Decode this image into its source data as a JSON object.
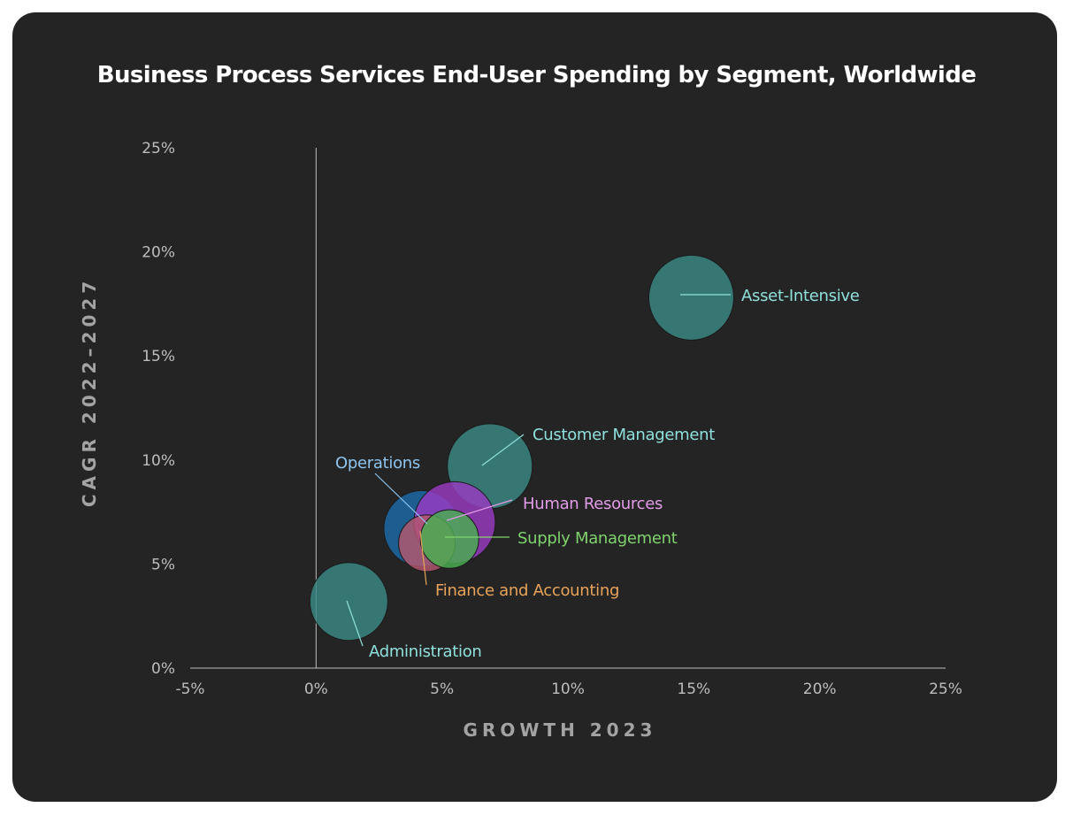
{
  "chart_data": {
    "type": "scatter",
    "title": "Business Process Services End-User Spending by Segment, Worldwide",
    "xlabel": "GROWTH 2023",
    "ylabel": "CAGR 2022–2027",
    "xlim": [
      -5,
      25
    ],
    "ylim": [
      0,
      25
    ],
    "x_ticks": [
      "-5%",
      "0%",
      "5%",
      "10%",
      "15%",
      "20%",
      "25%"
    ],
    "y_ticks": [
      "0%",
      "5%",
      "10%",
      "15%",
      "20%",
      "25%"
    ],
    "series": [
      {
        "name": "Asset-Intensive",
        "x": 14.9,
        "y": 17.8,
        "color": "#3a8a86",
        "label_color": "#8fe0dc"
      },
      {
        "name": "Customer Management",
        "x": 6.9,
        "y": 9.7,
        "color": "#3a8a86",
        "label_color": "#8fe0dc"
      },
      {
        "name": "Operations",
        "x": 4.2,
        "y": 6.7,
        "color": "#1c6aa8",
        "label_color": "#8ec5f0"
      },
      {
        "name": "Human Resources",
        "x": 5.5,
        "y": 7.0,
        "color": "#9a3bc2",
        "label_color": "#e39ce8"
      },
      {
        "name": "Finance and Accounting",
        "x": 4.4,
        "y": 6.0,
        "color": "#b5576e",
        "label_color": "#e8a35a"
      },
      {
        "name": "Supply Management",
        "x": 5.3,
        "y": 6.2,
        "color": "#48b04f",
        "label_color": "#7fd36d"
      },
      {
        "name": "Administration",
        "x": 1.3,
        "y": 3.2,
        "color": "#3a8a86",
        "label_color": "#8fe0dc"
      }
    ]
  }
}
